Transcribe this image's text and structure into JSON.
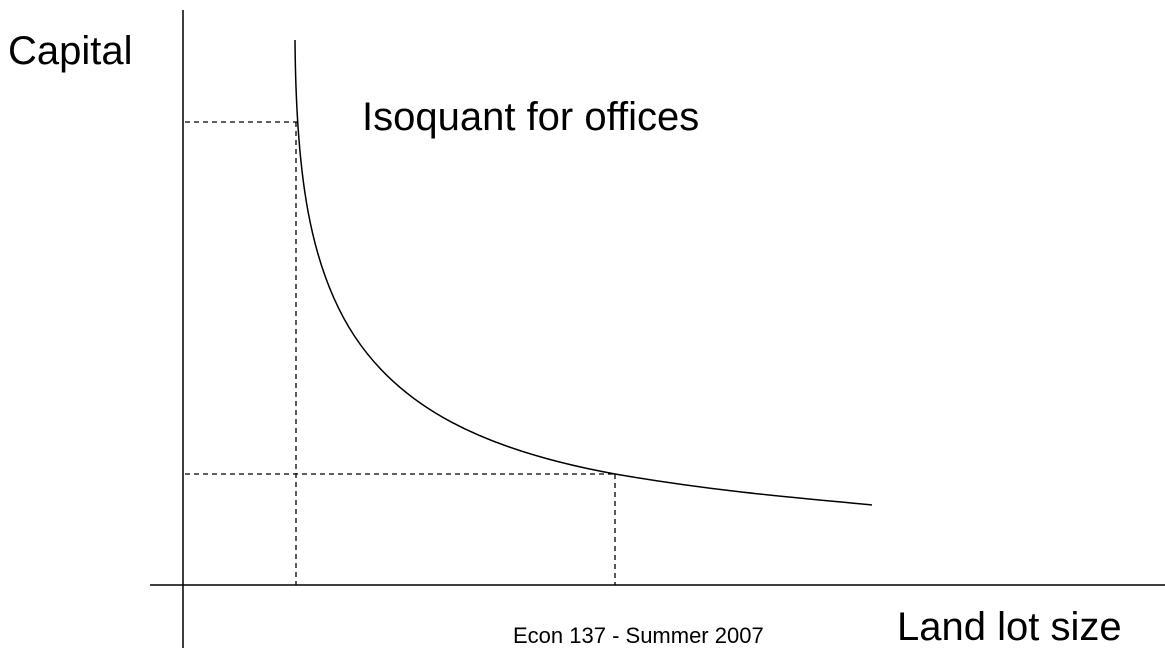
{
  "axis_labels": {
    "y": "Capital",
    "x": "Land lot size"
  },
  "curve_label": "Isoquant for offices",
  "footer": "Econ 137 - Summer 2007"
}
